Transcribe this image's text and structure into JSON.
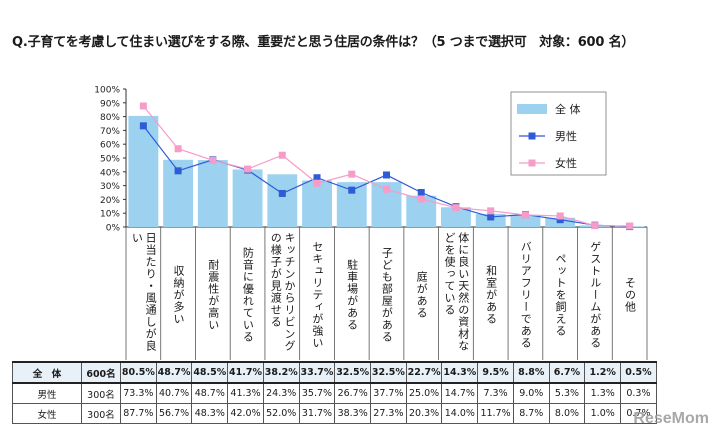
{
  "title": "Q.子育てを考慮して住まい選びをする際、重要だと思う住居の条件は？（5 つまで選択可　対象：600 名）",
  "watermark": "ReseMom",
  "colors": {
    "total_bar": "#9cd1ef",
    "male": "#2e5bd6",
    "female": "#f59cc8"
  },
  "chart_data": {
    "type": "bar",
    "ylim": [
      0,
      100
    ],
    "yticks": [
      "0%",
      "10%",
      "20%",
      "30%",
      "40%",
      "50%",
      "60%",
      "70%",
      "80%",
      "90%",
      "100%"
    ],
    "categories": [
      "日当たり・風通しが良い",
      "収納が多い",
      "耐震性が高い",
      "防音に優れている",
      "キッチンからリビングの様子が見渡せる",
      "セキュリティが強い",
      "駐車場がある",
      "子ども部屋がある",
      "庭がある",
      "体に良い天然の資材などを使っている",
      "和室がある",
      "バリアフリーである",
      "ペットを飼える",
      "ゲストルームがある",
      "その他"
    ],
    "series": [
      {
        "name": "全 体",
        "type": "bar",
        "values": [
          80.5,
          48.7,
          48.5,
          41.7,
          38.2,
          33.7,
          32.5,
          32.5,
          22.7,
          14.3,
          9.5,
          8.8,
          6.7,
          1.2,
          0.5
        ]
      },
      {
        "name": "男性",
        "type": "line",
        "values": [
          73.3,
          40.7,
          48.7,
          41.3,
          24.3,
          35.7,
          26.7,
          37.7,
          25.0,
          14.7,
          7.3,
          9.0,
          5.3,
          1.3,
          0.3
        ]
      },
      {
        "name": "女性",
        "type": "line",
        "values": [
          87.7,
          56.7,
          48.3,
          42.0,
          52.0,
          31.7,
          38.3,
          27.3,
          20.3,
          14.0,
          11.7,
          8.7,
          8.0,
          1.0,
          0.7
        ]
      }
    ],
    "legend_position": "top-right"
  },
  "table": {
    "rows": [
      {
        "label": "全　体",
        "n": "600名",
        "values": [
          "80.5%",
          "48.7%",
          "48.5%",
          "41.7%",
          "38.2%",
          "33.7%",
          "32.5%",
          "32.5%",
          "22.7%",
          "14.3%",
          "9.5%",
          "8.8%",
          "6.7%",
          "1.2%",
          "0.5%"
        ]
      },
      {
        "label": "男性",
        "n": "300名",
        "values": [
          "73.3%",
          "40.7%",
          "48.7%",
          "41.3%",
          "24.3%",
          "35.7%",
          "26.7%",
          "37.7%",
          "25.0%",
          "14.7%",
          "7.3%",
          "9.0%",
          "5.3%",
          "1.3%",
          "0.3%"
        ]
      },
      {
        "label": "女性",
        "n": "300名",
        "values": [
          "87.7%",
          "56.7%",
          "48.3%",
          "42.0%",
          "52.0%",
          "31.7%",
          "38.3%",
          "27.3%",
          "20.3%",
          "14.0%",
          "11.7%",
          "8.7%",
          "8.0%",
          "1.0%",
          "0.7%"
        ]
      }
    ]
  }
}
